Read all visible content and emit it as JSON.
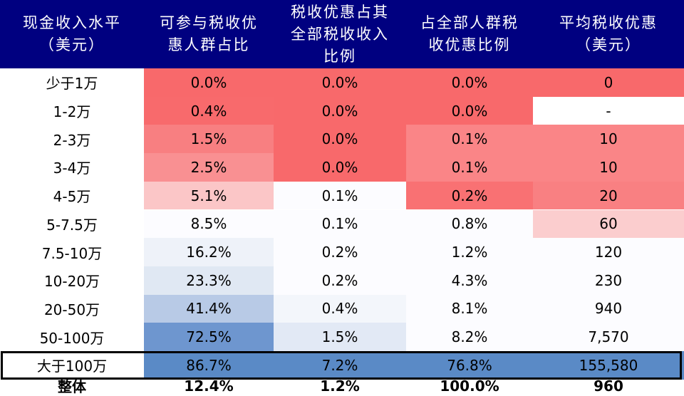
{
  "chart_data": {
    "type": "table",
    "columns": [
      "现金收入水平\n（美元）",
      "可参与税收优\n惠人群占比",
      "税收优惠占其\n全部税收收入\n比例",
      "占全部人群税\n收优惠比例",
      "平均税收优惠\n（美元）"
    ],
    "rows": [
      {
        "label": "少于1万",
        "values": [
          "0.0%",
          "0.0%",
          "0.0%",
          "0"
        ]
      },
      {
        "label": "1-2万",
        "values": [
          "0.4%",
          "0.0%",
          "0.0%",
          "-"
        ]
      },
      {
        "label": "2-3万",
        "values": [
          "1.5%",
          "0.0%",
          "0.1%",
          "10"
        ]
      },
      {
        "label": "3-4万",
        "values": [
          "2.5%",
          "0.0%",
          "0.1%",
          "10"
        ]
      },
      {
        "label": "4-5万",
        "values": [
          "5.1%",
          "0.1%",
          "0.2%",
          "20"
        ]
      },
      {
        "label": "5-7.5万",
        "values": [
          "8.5%",
          "0.1%",
          "0.8%",
          "60"
        ]
      },
      {
        "label": "7.5-10万",
        "values": [
          "16.2%",
          "0.2%",
          "1.2%",
          "120"
        ]
      },
      {
        "label": "10-20万",
        "values": [
          "23.3%",
          "0.2%",
          "4.3%",
          "230"
        ]
      },
      {
        "label": "20-50万",
        "values": [
          "41.4%",
          "0.4%",
          "8.1%",
          "940"
        ]
      },
      {
        "label": "50-100万",
        "values": [
          "72.5%",
          "1.5%",
          "8.2%",
          "7,570"
        ]
      },
      {
        "label": "大于100万",
        "values": [
          "86.7%",
          "7.2%",
          "76.8%",
          "155,580"
        ]
      }
    ],
    "total": {
      "label": "整体",
      "values": [
        "12.4%",
        "1.2%",
        "100.0%",
        "960"
      ]
    }
  },
  "colors": {
    "header_bg": "#000080",
    "cell_fills": [
      [
        "#f8696b",
        "#f8696b",
        "#f8696b",
        "#f8696b"
      ],
      [
        "#f86a6c",
        "#f8696b",
        "#f8696b",
        "#ffffff"
      ],
      [
        "#f87f81",
        "#f8696b",
        "#fa8587",
        "#fa8587"
      ],
      [
        "#f99092",
        "#f8696b",
        "#fa8587",
        "#fa8587"
      ],
      [
        "#fbc6c7",
        "#fcfcff",
        "#f97173",
        "#f98082"
      ],
      [
        "#fcfcff",
        "#fcfcff",
        "#fcfcff",
        "#fbcdce"
      ],
      [
        "#eef2f9",
        "#fcfcff",
        "#fcfcff",
        "#fcfcff"
      ],
      [
        "#e0e8f3",
        "#fcfcff",
        "#fcfcff",
        "#fcfcff"
      ],
      [
        "#b8cae6",
        "#f3f6fb",
        "#fcfcff",
        "#fcfcff"
      ],
      [
        "#6e96cf",
        "#e2e9f5",
        "#fcfcff",
        "#fcfcff"
      ],
      [
        "#5a8ac6",
        "#5a8ac6",
        "#5a8ac6",
        "#5a8ac6"
      ]
    ]
  }
}
